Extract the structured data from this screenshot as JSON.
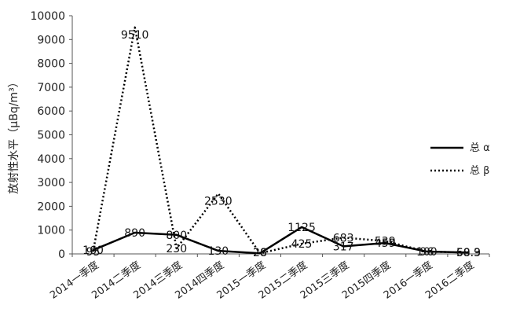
{
  "chart_data": {
    "type": "line",
    "title": "",
    "xlabel": "",
    "ylabel": "放射性水平（μBq/m³）",
    "ylim": [
      0,
      10000
    ],
    "yticks": [
      0,
      1000,
      2000,
      3000,
      4000,
      5000,
      6000,
      7000,
      8000,
      9000,
      10000
    ],
    "grid": false,
    "legend_position": "right",
    "categories": [
      "2014一季度",
      "2014二季度",
      "2014三季度",
      "2014四季度",
      "2015一季度",
      "2015二季度",
      "2015三季度",
      "2015四季度",
      "2016一季度",
      "2016二季度"
    ],
    "series": [
      {
        "name": "总 α",
        "style": "solid",
        "color": "#000000",
        "values": [
          160,
          890,
          800,
          130,
          28,
          1125,
          317,
          459,
          100,
          60.3
        ],
        "labels": [
          "160",
          "890",
          "800",
          "130",
          "28",
          "1125",
          "317",
          "459",
          "100",
          "60.3"
        ]
      },
      {
        "name": "总 β",
        "style": "dotted",
        "color": "#000000",
        "values": [
          95,
          9510,
          230,
          2530,
          26,
          425,
          683,
          539,
          96,
          58.9
        ],
        "labels": [
          "95",
          "9510",
          "230",
          "2530",
          "26",
          "425",
          "683",
          "539",
          "96",
          "58.9"
        ]
      }
    ]
  }
}
